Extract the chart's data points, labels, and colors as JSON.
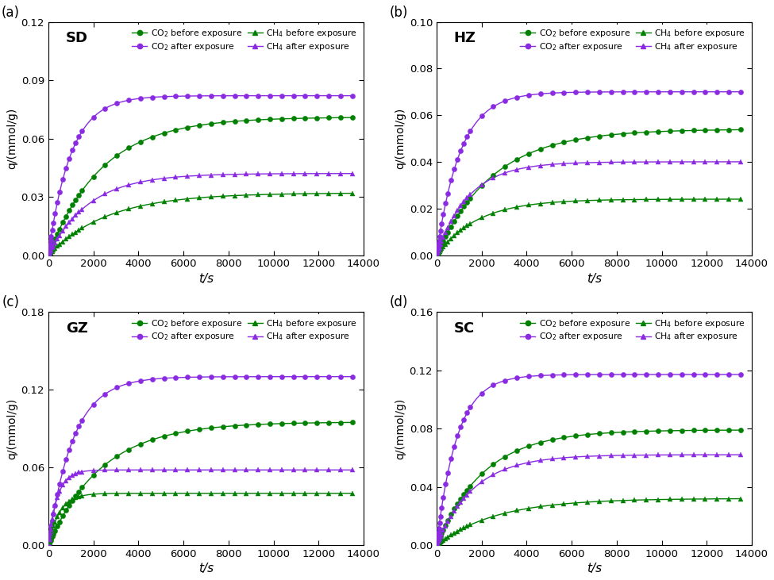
{
  "panels": [
    {
      "label": "(a)",
      "site": "SD",
      "ylim": [
        0,
        0.12
      ],
      "yticks": [
        0.0,
        0.03,
        0.06,
        0.09,
        0.12
      ],
      "series": {
        "co2_before": {
          "color": "#008000",
          "marker": "o",
          "final": 0.071,
          "k": 0.00042
        },
        "co2_after": {
          "color": "#8A2BE2",
          "marker": "o",
          "final": 0.082,
          "k": 0.001
        },
        "ch4_before": {
          "color": "#008000",
          "marker": "^",
          "final": 0.032,
          "k": 0.00038
        },
        "ch4_after": {
          "color": "#8A2BE2",
          "marker": "^",
          "final": 0.042,
          "k": 0.00055
        }
      }
    },
    {
      "label": "(b)",
      "site": "HZ",
      "ylim": [
        0,
        0.1
      ],
      "yticks": [
        0.0,
        0.02,
        0.04,
        0.06,
        0.08,
        0.1
      ],
      "series": {
        "co2_before": {
          "color": "#008000",
          "marker": "o",
          "final": 0.054,
          "k": 0.0004
        },
        "co2_after": {
          "color": "#8A2BE2",
          "marker": "o",
          "final": 0.07,
          "k": 0.00095
        },
        "ch4_before": {
          "color": "#008000",
          "marker": "^",
          "final": 0.024,
          "k": 0.00055
        },
        "ch4_after": {
          "color": "#8A2BE2",
          "marker": "^",
          "final": 0.04,
          "k": 0.0007
        }
      }
    },
    {
      "label": "(c)",
      "site": "GZ",
      "ylim": [
        0,
        0.18
      ],
      "yticks": [
        0.0,
        0.06,
        0.12,
        0.18
      ],
      "series": {
        "co2_before": {
          "color": "#008000",
          "marker": "o",
          "final": 0.095,
          "k": 0.00042
        },
        "co2_after": {
          "color": "#8A2BE2",
          "marker": "o",
          "final": 0.13,
          "k": 0.0009
        },
        "ch4_before": {
          "color": "#008000",
          "marker": "^",
          "final": 0.04,
          "k": 0.002
        },
        "ch4_after": {
          "color": "#8A2BE2",
          "marker": "^",
          "final": 0.058,
          "k": 0.0025
        }
      }
    },
    {
      "label": "(d)",
      "site": "SC",
      "ylim": [
        0,
        0.16
      ],
      "yticks": [
        0.0,
        0.04,
        0.08,
        0.12,
        0.16
      ],
      "series": {
        "co2_before": {
          "color": "#008000",
          "marker": "o",
          "final": 0.079,
          "k": 0.00048
        },
        "co2_after": {
          "color": "#8A2BE2",
          "marker": "o",
          "final": 0.117,
          "k": 0.0011
        },
        "ch4_before": {
          "color": "#008000",
          "marker": "^",
          "final": 0.032,
          "k": 0.00038
        },
        "ch4_after": {
          "color": "#8A2BE2",
          "marker": "^",
          "final": 0.062,
          "k": 0.0006
        }
      }
    }
  ],
  "xlim": [
    0,
    14000
  ],
  "xticks": [
    0,
    2000,
    4000,
    6000,
    8000,
    10000,
    12000,
    14000
  ],
  "xlabel": "t/s",
  "ylabel": "q/(mmol/g)",
  "green": "#008000",
  "purple": "#8A2BE2",
  "legend_entries_col1": [
    {
      "label": "CO$_2$ before exposure",
      "color": "#008000",
      "marker": "o"
    },
    {
      "label": "CH$_4$ before exposure",
      "color": "#008000",
      "marker": "^"
    }
  ],
  "legend_entries_col2": [
    {
      "label": "CO$_2$ after exposure",
      "color": "#8A2BE2",
      "marker": "o"
    },
    {
      "label": "CH$_4$ after exposure",
      "color": "#8A2BE2",
      "marker": "^"
    }
  ]
}
